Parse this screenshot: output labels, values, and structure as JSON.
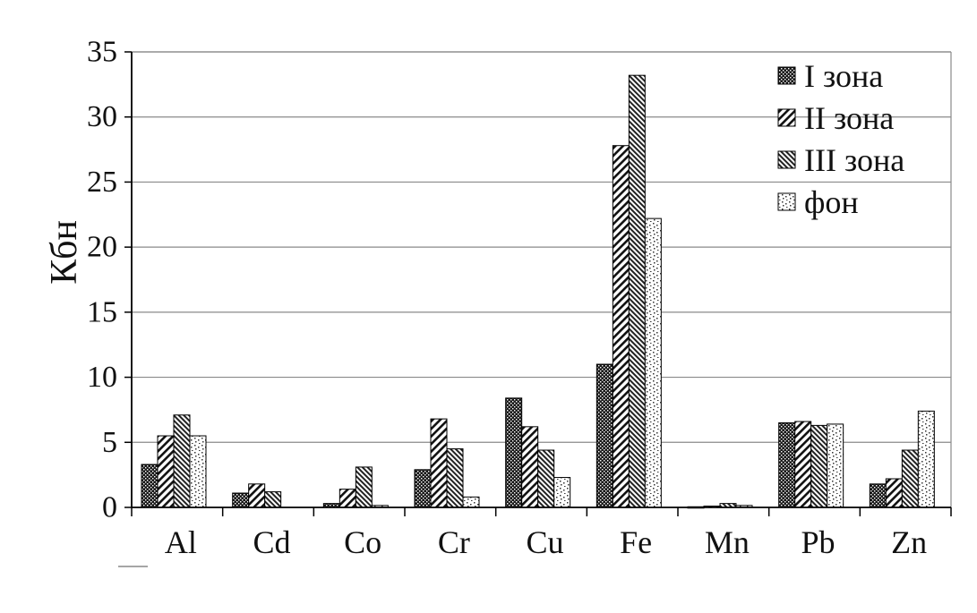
{
  "chart_data": {
    "type": "bar",
    "title": "",
    "xlabel": "",
    "ylabel": "Кбн",
    "ylim": [
      0,
      35
    ],
    "yticks": [
      "0",
      "5",
      "10",
      "15",
      "20",
      "25",
      "30",
      "35"
    ],
    "grid": true,
    "legend_position": "top-right",
    "categories": [
      "Al",
      "Cd",
      "Co",
      "Cr",
      "Cu",
      "Fe",
      "Mn",
      "Pb",
      "Zn"
    ],
    "series": [
      {
        "name": "I зона",
        "pattern": "dense-dots-dark",
        "values": [
          3.3,
          1.1,
          0.3,
          2.9,
          8.4,
          11.0,
          0.05,
          6.5,
          1.8
        ]
      },
      {
        "name": "II зона",
        "pattern": "diagonal-hatch",
        "values": [
          5.5,
          1.8,
          1.4,
          6.8,
          6.2,
          27.8,
          0.1,
          6.6,
          2.2
        ]
      },
      {
        "name": "III зона",
        "pattern": "dense-diagonal-hatch",
        "values": [
          7.1,
          1.2,
          3.1,
          4.5,
          4.4,
          33.2,
          0.3,
          6.3,
          4.4
        ]
      },
      {
        "name": "фон",
        "pattern": "light-dots",
        "values": [
          5.5,
          0,
          0.15,
          0.8,
          2.3,
          22.2,
          0.15,
          6.4,
          7.4
        ]
      }
    ]
  }
}
